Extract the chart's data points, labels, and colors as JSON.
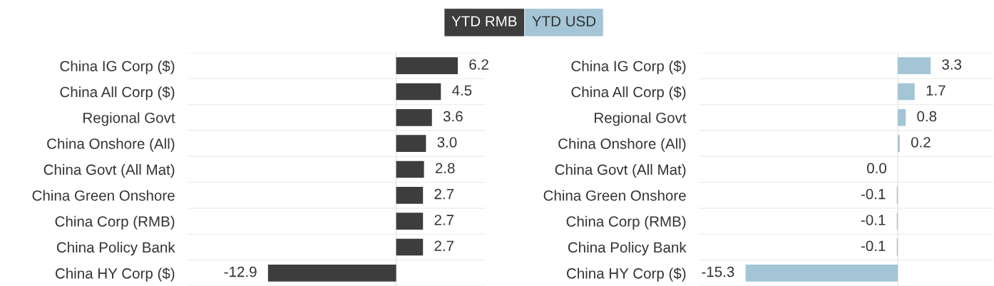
{
  "chart_data": [
    {
      "type": "bar",
      "orientation": "horizontal",
      "categories": [
        "China IG Corp ($)",
        "China All Corp ($)",
        "Regional Govt",
        "China Onshore (All)",
        "China Govt (All Mat)",
        "China Green Onshore",
        "China Corp (RMB)",
        "China Policy Bank",
        "China HY Corp ($)"
      ],
      "series": [
        {
          "name": "YTD RMB",
          "color": "#3d3d3d",
          "values": [
            6.2,
            4.5,
            3.6,
            3.0,
            2.8,
            2.7,
            2.7,
            2.7,
            -12.9
          ],
          "value_labels": [
            "6.2",
            "4.5",
            "3.6",
            "3.0",
            "2.8",
            "2.7",
            "2.7",
            "2.7",
            "-12.9"
          ]
        }
      ],
      "xlim": [
        -21,
        9
      ],
      "tick_labels": "y",
      "grid": "y",
      "legend": "top"
    },
    {
      "type": "bar",
      "orientation": "horizontal",
      "categories": [
        "China IG Corp ($)",
        "China All Corp ($)",
        "Regional Govt",
        "China Onshore (All)",
        "China Govt (All Mat)",
        "China Green Onshore",
        "China Corp (RMB)",
        "China Policy Bank",
        "China HY Corp ($)"
      ],
      "series": [
        {
          "name": "YTD USD",
          "color": "#a3c5d6",
          "values": [
            3.3,
            1.7,
            0.8,
            0.2,
            0.0,
            -0.1,
            -0.1,
            -0.1,
            -15.3
          ],
          "value_labels": [
            "3.3",
            "1.7",
            "0.8",
            "0.2",
            "0.0",
            "-0.1",
            "-0.1",
            "-0.1",
            "-15.3"
          ]
        }
      ],
      "xlim": [
        -20,
        9.6
      ],
      "tick_labels": "y",
      "grid": "y",
      "legend": "top"
    }
  ]
}
